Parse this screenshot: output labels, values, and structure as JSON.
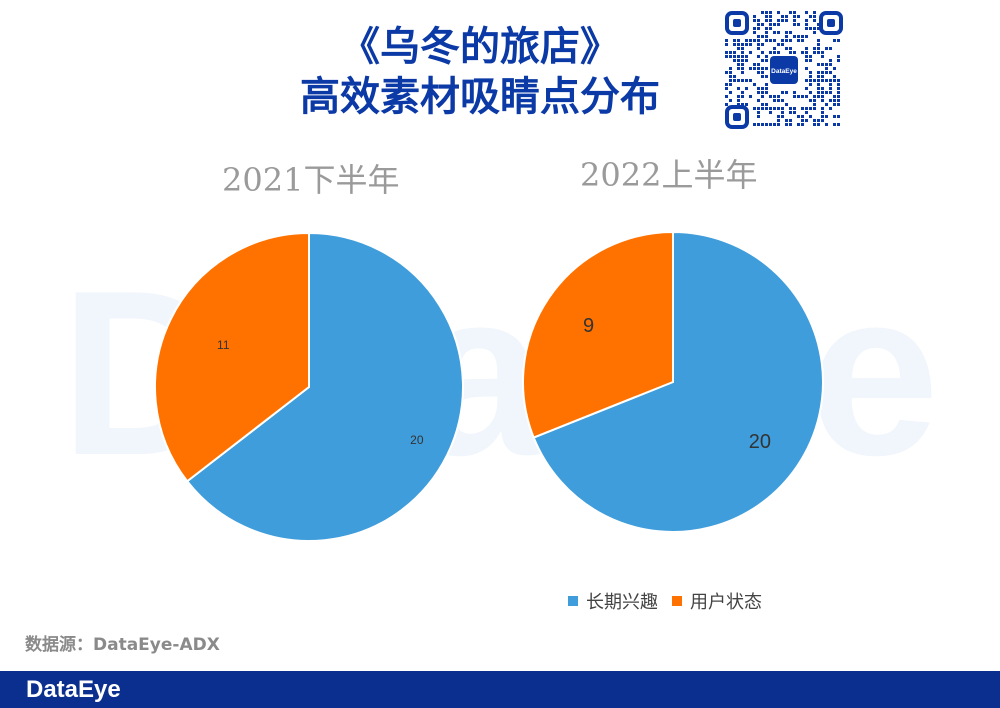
{
  "header": {
    "title_line1": "《乌冬的旅店》",
    "title_line2": "高效素材吸睛点分布"
  },
  "watermark_text": "DataEye",
  "qr_center_label": "DataEye",
  "chart_data": [
    {
      "type": "pie",
      "title": "2021下半年",
      "slices": [
        {
          "label": "长期兴趣",
          "value": 20,
          "color": "#3f9ddb"
        },
        {
          "label": "用户状态",
          "value": 11,
          "color": "#ff7200"
        }
      ],
      "legend": false
    },
    {
      "type": "pie",
      "title": "2022上半年",
      "slices": [
        {
          "label": "长期兴趣",
          "value": 20,
          "color": "#3f9ddb"
        },
        {
          "label": "用户状态",
          "value": 9,
          "color": "#ff7200"
        }
      ],
      "legend": "bottom"
    }
  ],
  "legend": {
    "items": [
      {
        "label": "长期兴趣",
        "color": "#3f9ddb"
      },
      {
        "label": "用户状态",
        "color": "#ff7200"
      }
    ]
  },
  "source_text": "数据源：DataEye-ADX",
  "footer": {
    "brand": "DataEye"
  },
  "colors": {
    "title": "#0b3aa6",
    "footer_bg": "#0b2f8f",
    "watermark": "#f1f6fc"
  }
}
